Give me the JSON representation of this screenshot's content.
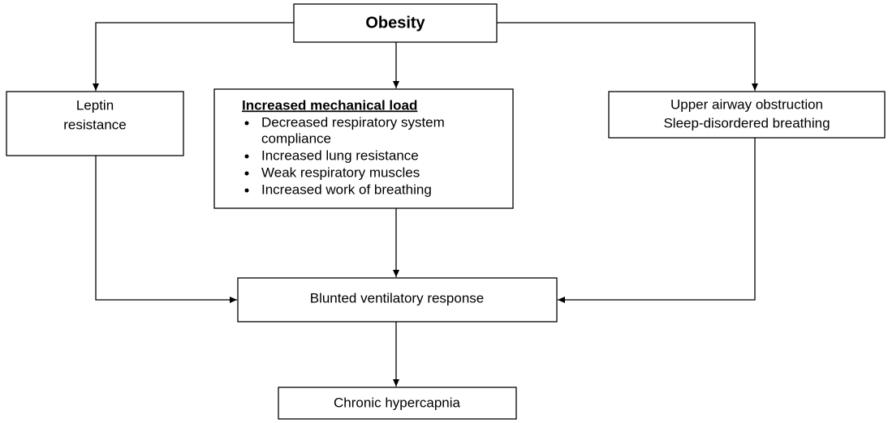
{
  "nodes": [
    {
      "id": "obesity",
      "lines": [
        "Obesity"
      ]
    },
    {
      "id": "leptin",
      "lines": [
        "Leptin",
        "resistance"
      ]
    },
    {
      "id": "mechanical",
      "title": "Increased mechanical load",
      "bullets": [
        [
          "Decreased respiratory system",
          "compliance"
        ],
        [
          "Increased lung resistance"
        ],
        [
          "Weak respiratory muscles"
        ],
        [
          "Increased work of breathing"
        ]
      ]
    },
    {
      "id": "airway",
      "lines": [
        "Upper airway obstruction",
        "Sleep-disordered breathing"
      ]
    },
    {
      "id": "blunted",
      "lines": [
        "Blunted ventilatory response"
      ]
    },
    {
      "id": "hypercapnia",
      "lines": [
        "Chronic hypercapnia"
      ]
    }
  ]
}
